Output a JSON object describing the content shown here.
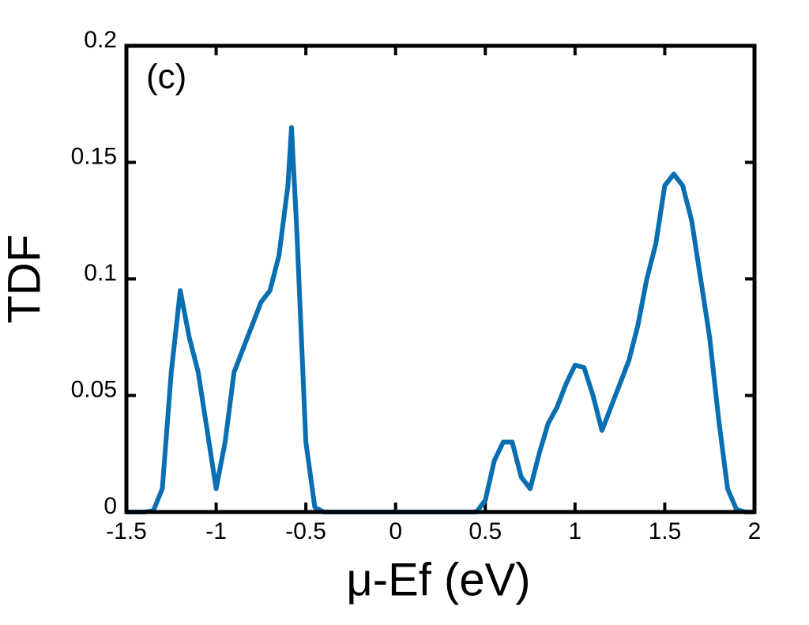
{
  "chart_data": {
    "type": "line",
    "annotation": "(c)",
    "xlabel": "μ-Ef (eV)",
    "ylabel": "TDF",
    "x": [
      -1.5,
      -1.45,
      -1.4,
      -1.35,
      -1.3,
      -1.25,
      -1.2,
      -1.15,
      -1.1,
      -1.05,
      -1.0,
      -0.95,
      -0.9,
      -0.85,
      -0.8,
      -0.75,
      -0.7,
      -0.65,
      -0.6,
      -0.58,
      -0.55,
      -0.5,
      -0.45,
      -0.4,
      0.45,
      0.5,
      0.55,
      0.6,
      0.65,
      0.7,
      0.75,
      0.8,
      0.85,
      0.9,
      0.95,
      1.0,
      1.05,
      1.1,
      1.15,
      1.2,
      1.25,
      1.3,
      1.35,
      1.4,
      1.45,
      1.5,
      1.55,
      1.6,
      1.65,
      1.7,
      1.75,
      1.8,
      1.85,
      1.9,
      1.95,
      2.0
    ],
    "series": [
      {
        "color": "#0a6fb0",
        "values": [
          0,
          0,
          0,
          0.0005,
          0.01,
          0.06,
          0.095,
          0.075,
          0.06,
          0.035,
          0.01,
          0.03,
          0.06,
          0.07,
          0.08,
          0.09,
          0.095,
          0.11,
          0.14,
          0.165,
          0.12,
          0.03,
          0.002,
          0,
          0,
          0.005,
          0.022,
          0.03,
          0.03,
          0.015,
          0.01,
          0.025,
          0.038,
          0.045,
          0.055,
          0.063,
          0.062,
          0.05,
          0.035,
          0.045,
          0.055,
          0.065,
          0.08,
          0.1,
          0.115,
          0.14,
          0.145,
          0.14,
          0.125,
          0.1,
          0.075,
          0.04,
          0.01,
          0.001,
          0,
          0
        ]
      }
    ],
    "xlim": [
      -1.5,
      2
    ],
    "ylim": [
      0,
      0.2
    ],
    "xticks": [
      -1.5,
      -1,
      -0.5,
      0,
      0.5,
      1,
      1.5,
      2
    ],
    "yticks": [
      0,
      0.05,
      0.1,
      0.15,
      0.2
    ]
  }
}
